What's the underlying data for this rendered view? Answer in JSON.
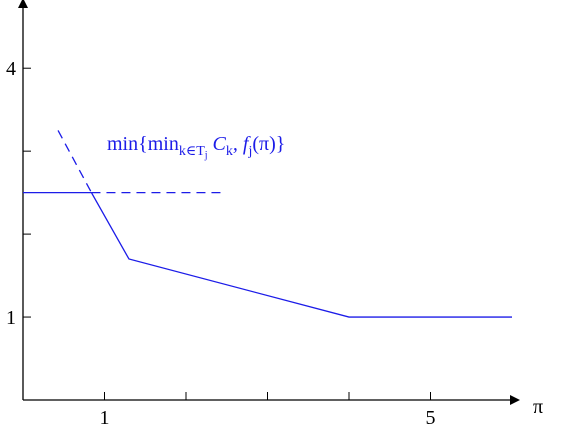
{
  "chart_data": {
    "type": "line",
    "x_label": "π",
    "annotation": [
      "min{min",
      "k∈T",
      "j",
      " C",
      "k",
      ", f",
      "j",
      "(π)}"
    ],
    "xlim": [
      0,
      6
    ],
    "ylim": [
      0,
      4.75
    ],
    "xticks": [
      1,
      2,
      3,
      4,
      5
    ],
    "xtick_labels": [
      1,
      5
    ],
    "yticks": [
      1,
      2,
      3,
      4
    ],
    "ytick_labels": [
      1,
      4
    ],
    "series": [
      {
        "x": [
          0,
          0.84,
          1.3,
          4,
          6
        ],
        "values": [
          2.5,
          2.5,
          1.7,
          1,
          1
        ],
        "color": "#1c1ce8",
        "dashed": false
      },
      {
        "x": [
          0.43,
          0.84
        ],
        "values": [
          3.25,
          2.5
        ],
        "color": "#1c1ce8",
        "dashed": true
      },
      {
        "x": [
          0.84,
          2.48
        ],
        "values": [
          2.5,
          2.5
        ],
        "color": "#1c1ce8",
        "dashed": true
      }
    ]
  }
}
